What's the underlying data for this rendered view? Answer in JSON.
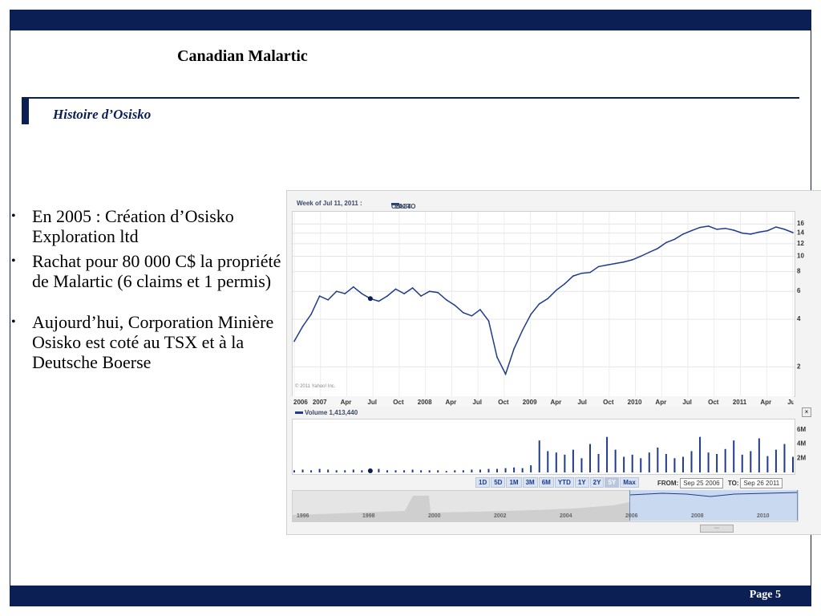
{
  "slide": {
    "title": "Canadian Malartic",
    "subtitle": "Histoire d’Osisko",
    "page": "Page 5",
    "bullets": [
      "En 2005 : Création d’Osisko Exploration ltd",
      "Rachat pour 80 000 C$ la propriété de Malartic (6 claims et 1 permis)",
      "Aujourd’hui, Corporation Minière Osisko est coté au TSX et à la Deutsche Boerse"
    ]
  },
  "chart_widget": {
    "week_label": "Week of Jul 11, 2011 :",
    "ticker_label": "OSK.TO",
    "ticker_value": "14.84",
    "volume_label": "Volume",
    "volume_value": "1,413,440",
    "copyright": "© 2011 Yahoo! Inc.",
    "close_glyph": "×",
    "range_buttons": [
      "1D",
      "5D",
      "1M",
      "3M",
      "6M",
      "YTD",
      "1Y",
      "2Y",
      "5Y",
      "Max"
    ],
    "selected_range": "5Y",
    "from_label": "FROM:",
    "from_value": "Sep 25 2006",
    "to_label": "TO:",
    "to_value": "Sep 26 2011",
    "navigator_years": [
      "1996",
      "1998",
      "2000",
      "2002",
      "2004",
      "2006",
      "2008",
      "2010"
    ],
    "grip": "◦◦◦"
  },
  "chart_data": {
    "type": "line",
    "title": "",
    "xlabel": "",
    "ylabel": "",
    "y_scale": "log",
    "ylim": [
      1.5,
      17
    ],
    "y_ticks": [
      2,
      4,
      6,
      8,
      10,
      12,
      14,
      16
    ],
    "x_tick_labels": [
      "2006",
      "2007",
      "Apr",
      "Jul",
      "Oct",
      "2008",
      "Apr",
      "Jul",
      "Oct",
      "2009",
      "Apr",
      "Jul",
      "Oct",
      "2010",
      "Apr",
      "Jul",
      "Oct",
      "2011",
      "Apr",
      "Jul"
    ],
    "series": [
      {
        "name": "OSK.TO",
        "color": "#1f3b8c",
        "x": [
          "2006-10",
          "2006-11",
          "2006-12",
          "2007-01",
          "2007-02",
          "2007-03",
          "2007-04",
          "2007-05",
          "2007-06",
          "2007-07",
          "2007-08",
          "2007-09",
          "2007-10",
          "2007-11",
          "2007-12",
          "2008-01",
          "2008-02",
          "2008-03",
          "2008-04",
          "2008-05",
          "2008-06",
          "2008-07",
          "2008-08",
          "2008-09",
          "2008-10",
          "2008-11",
          "2008-12",
          "2009-01",
          "2009-02",
          "2009-03",
          "2009-04",
          "2009-05",
          "2009-06",
          "2009-07",
          "2009-08",
          "2009-09",
          "2009-10",
          "2009-11",
          "2009-12",
          "2010-01",
          "2010-02",
          "2010-03",
          "2010-04",
          "2010-05",
          "2010-06",
          "2010-07",
          "2010-08",
          "2010-09",
          "2010-10",
          "2010-11",
          "2010-12",
          "2011-01",
          "2011-02",
          "2011-03",
          "2011-04",
          "2011-05",
          "2011-06",
          "2011-07",
          "2011-08",
          "2011-09"
        ],
        "y": [
          2.9,
          3.6,
          4.3,
          5.6,
          5.3,
          6.0,
          5.8,
          6.4,
          5.8,
          5.4,
          5.2,
          5.6,
          6.2,
          5.8,
          6.3,
          5.6,
          6.0,
          5.9,
          5.3,
          4.9,
          4.4,
          4.2,
          4.6,
          3.9,
          2.3,
          1.8,
          2.6,
          3.4,
          4.3,
          5.0,
          5.4,
          6.1,
          6.7,
          7.5,
          7.8,
          7.9,
          8.6,
          8.8,
          9.0,
          9.2,
          9.5,
          10.0,
          10.6,
          11.2,
          12.2,
          12.8,
          13.8,
          14.5,
          15.2,
          15.5,
          14.8,
          15.0,
          14.6,
          14.0,
          13.8,
          14.2,
          14.5,
          15.3,
          14.8,
          14.1
        ]
      }
    ],
    "volume_series": {
      "name": "Volume",
      "unit": "M",
      "ylim": [
        0,
        7
      ],
      "y_ticks": [
        "2M",
        "4M",
        "6M"
      ],
      "x_months": [
        "2006-10",
        "2006-11",
        "2006-12",
        "2007-01",
        "2007-02",
        "2007-03",
        "2007-04",
        "2007-05",
        "2007-06",
        "2007-07",
        "2007-08",
        "2007-09",
        "2007-10",
        "2007-11",
        "2007-12",
        "2008-01",
        "2008-02",
        "2008-03",
        "2008-04",
        "2008-05",
        "2008-06",
        "2008-07",
        "2008-08",
        "2008-09",
        "2008-10",
        "2008-11",
        "2008-12",
        "2009-01",
        "2009-02",
        "2009-03",
        "2009-04",
        "2009-05",
        "2009-06",
        "2009-07",
        "2009-08",
        "2009-09",
        "2009-10",
        "2009-11",
        "2009-12",
        "2010-01",
        "2010-02",
        "2010-03",
        "2010-04",
        "2010-05",
        "2010-06",
        "2010-07",
        "2010-08",
        "2010-09",
        "2010-10",
        "2010-11",
        "2010-12",
        "2011-01",
        "2011-02",
        "2011-03",
        "2011-04",
        "2011-05",
        "2011-06",
        "2011-07",
        "2011-08",
        "2011-09"
      ],
      "values": [
        0.3,
        0.4,
        0.3,
        0.5,
        0.4,
        0.3,
        0.3,
        0.4,
        0.3,
        0.4,
        0.5,
        0.3,
        0.3,
        0.3,
        0.4,
        0.3,
        0.3,
        0.3,
        0.2,
        0.3,
        0.3,
        0.4,
        0.4,
        0.5,
        0.5,
        0.6,
        0.7,
        0.6,
        1.0,
        4.5,
        3.0,
        2.8,
        2.5,
        3.2,
        2.0,
        4.0,
        2.6,
        5.0,
        3.2,
        2.2,
        2.5,
        2.0,
        2.8,
        3.5,
        2.6,
        2.0,
        2.2,
        3.0,
        5.0,
        2.8,
        2.6,
        3.3,
        4.5,
        2.5,
        3.0,
        4.8,
        2.3,
        3.2,
        4.0,
        2.2
      ]
    }
  }
}
